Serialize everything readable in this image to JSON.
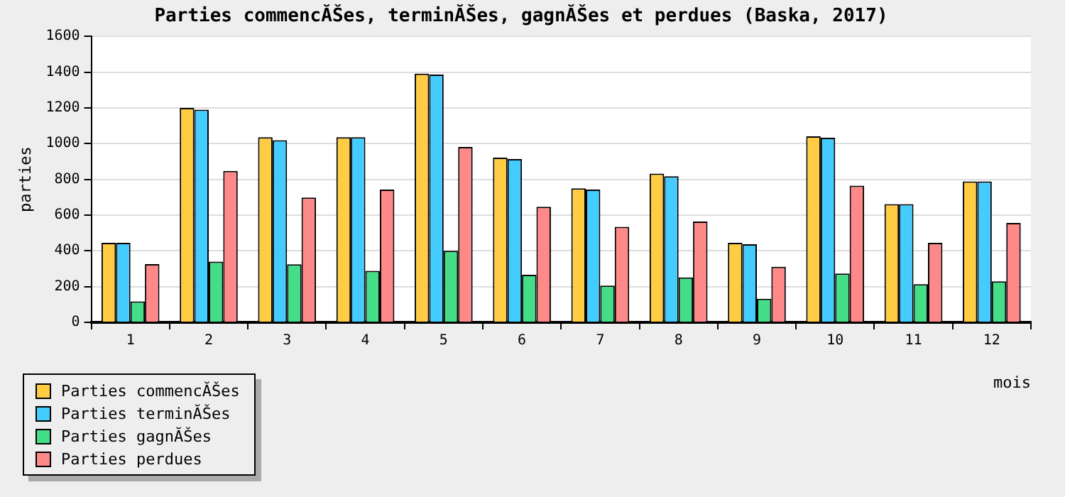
{
  "chart_data": {
    "type": "bar",
    "title": "Parties commencĂŠes, terminĂŠes, gagnĂŠes et perdues (Baska, 2017)",
    "xlabel": "mois",
    "ylabel": "parties",
    "categories": [
      "1",
      "2",
      "3",
      "4",
      "5",
      "6",
      "7",
      "8",
      "9",
      "10",
      "11",
      "12"
    ],
    "series": [
      {
        "name": "Parties commencĂŠes",
        "color": "#ffcc44",
        "values": [
          445,
          1200,
          1036,
          1036,
          1391,
          922,
          750,
          832,
          445,
          1041,
          661,
          788
        ]
      },
      {
        "name": "Parties terminĂŠes",
        "color": "#44ccff",
        "values": [
          445,
          1190,
          1019,
          1036,
          1386,
          914,
          743,
          817,
          437,
          1033,
          661,
          788
        ]
      },
      {
        "name": "Parties gagnĂŠes",
        "color": "#44dd88",
        "values": [
          117,
          340,
          325,
          288,
          400,
          266,
          206,
          251,
          132,
          273,
          214,
          229
        ]
      },
      {
        "name": "Parties perdues",
        "color": "#ff8888",
        "values": [
          326,
          847,
          698,
          743,
          981,
          646,
          534,
          564,
          311,
          765,
          445,
          556
        ]
      }
    ],
    "ylim": [
      0,
      1600
    ],
    "yticks": [
      0,
      200,
      400,
      600,
      800,
      1000,
      1200,
      1400,
      1600
    ],
    "grid": "y",
    "legend": "bottom left"
  }
}
